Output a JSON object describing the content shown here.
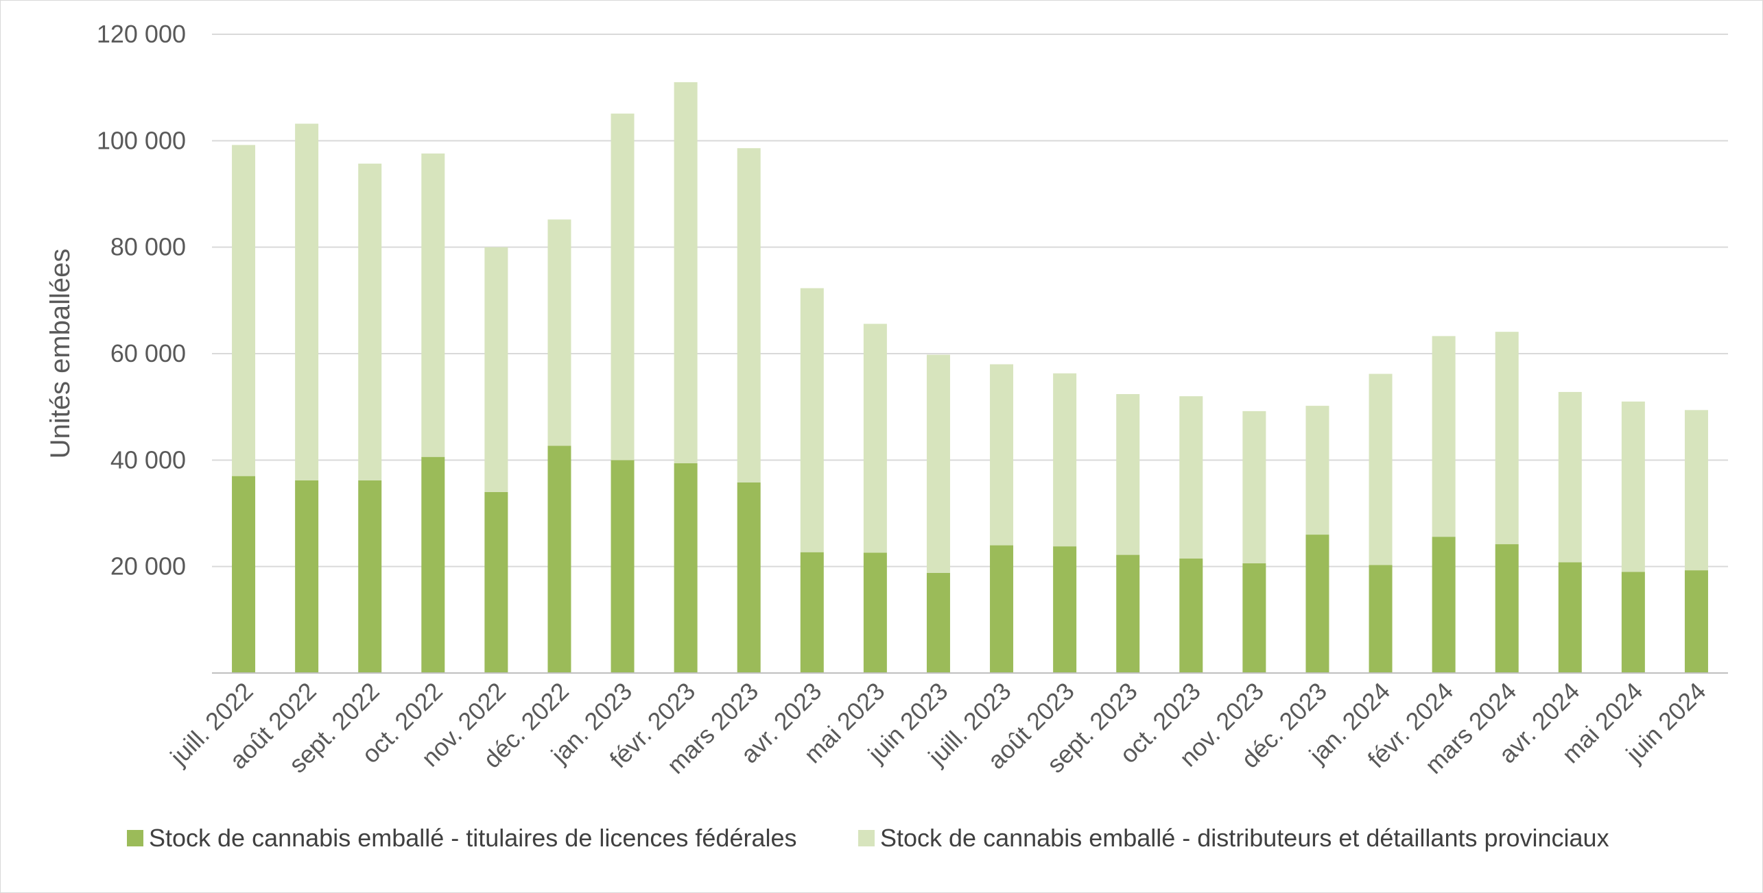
{
  "chart_data": {
    "type": "bar",
    "stacked": true,
    "title": "",
    "xlabel": "",
    "ylabel": "Unités emballées",
    "ylim": [
      0,
      120000
    ],
    "yticks": [
      0,
      20000,
      40000,
      60000,
      80000,
      100000,
      120000
    ],
    "ytick_labels": [
      "",
      "20 000",
      "40 000",
      "60 000",
      "80 000",
      "100 000",
      "120 000"
    ],
    "grid": true,
    "legend_position": "bottom",
    "categories": [
      "juill. 2022",
      "août 2022",
      "sept. 2022",
      "oct. 2022",
      "nov. 2022",
      "déc. 2022",
      "jan. 2023",
      "févr. 2023",
      "mars 2023",
      "avr. 2023",
      "mai 2023",
      "juin 2023",
      "juill. 2023",
      "août 2023",
      "sept. 2023",
      "oct. 2023",
      "nov. 2023",
      "déc. 2023",
      "jan. 2024",
      "févr. 2024",
      "mars 2024",
      "avr. 2024",
      "mai 2024",
      "juin 2024"
    ],
    "series": [
      {
        "name": "Stock de cannabis emballé - titulaires de licences fédérales",
        "color": "#9bbb59",
        "values": [
          37000,
          36200,
          36200,
          40600,
          34000,
          42700,
          40000,
          39400,
          35800,
          22700,
          22600,
          18800,
          24000,
          23800,
          22200,
          21500,
          20600,
          26000,
          20300,
          25600,
          24200,
          20800,
          19000,
          19300
        ]
      },
      {
        "name": "Stock de cannabis emballé - distributeurs et détaillants provinciaux",
        "color": "#d7e4bd",
        "values": [
          62200,
          67000,
          59500,
          57000,
          46000,
          42500,
          65100,
          71600,
          62800,
          49600,
          43000,
          41000,
          34000,
          32500,
          30200,
          30500,
          28600,
          24200,
          35900,
          37700,
          39900,
          32000,
          32000,
          30100
        ]
      }
    ]
  }
}
